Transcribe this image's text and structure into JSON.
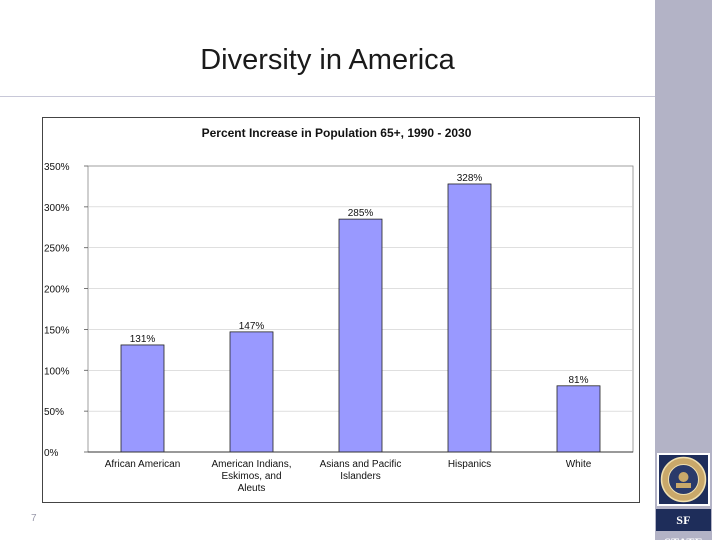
{
  "slide": {
    "title": "Diversity in America",
    "slide_number": "7",
    "logo_text": "SF STATE"
  },
  "colors": {
    "bar_fill": "#9999ff",
    "bar_stroke": "#222222",
    "side_band": "#b3b3c6",
    "logo_bg": "#1e2d5a"
  },
  "chart_data": {
    "type": "bar",
    "title": "Percent Increase in Population 65+, 1990 - 2030",
    "categories": [
      [
        "African American"
      ],
      [
        "American Indians,",
        "Eskimos, and",
        "Aleuts"
      ],
      [
        "Asians and Pacific",
        "Islanders"
      ],
      [
        "Hispanics"
      ],
      [
        "White"
      ]
    ],
    "values": [
      131,
      147,
      285,
      328,
      81
    ],
    "data_labels": [
      "131%",
      "147%",
      "285%",
      "328%",
      "81%"
    ],
    "y_ticks": [
      "0%",
      "50%",
      "100%",
      "150%",
      "200%",
      "250%",
      "300%",
      "350%"
    ],
    "ylim": [
      0,
      350
    ],
    "xlabel": "",
    "ylabel": ""
  }
}
